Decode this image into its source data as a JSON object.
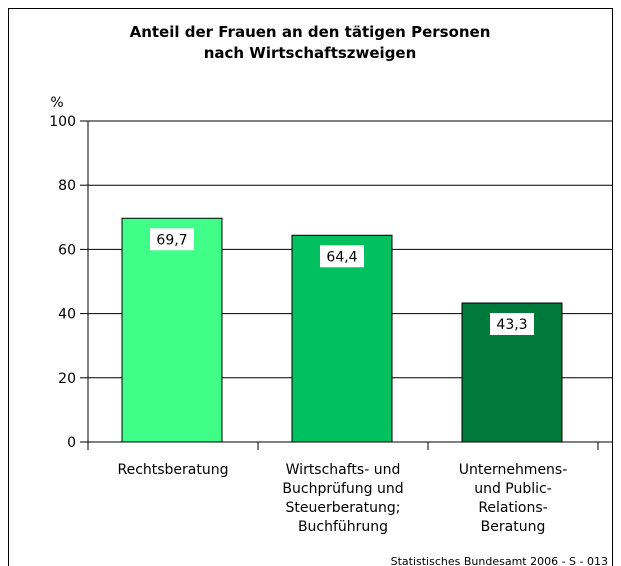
{
  "chart_data": {
    "type": "bar",
    "title": [
      "Anteil der Frauen an den tätigen Personen",
      "nach Wirtschaftszweigen"
    ],
    "y_label": "%",
    "categories": [
      [
        "Rechtsberatung"
      ],
      [
        "Wirtschafts- und",
        "Buchprüfung und",
        "Steuerberatung;",
        "Buchführung"
      ],
      [
        "Unternehmens-",
        "und Public-",
        "Relations-",
        "Beratung"
      ]
    ],
    "values": [
      69.7,
      64.4,
      43.3
    ],
    "value_labels": [
      "69,7",
      "64,4",
      "43,3"
    ],
    "colors": [
      "#40ff88",
      "#00c060",
      "#007a3a"
    ],
    "ylim": [
      0,
      100
    ],
    "yticks": [
      0,
      20,
      40,
      60,
      80,
      100
    ],
    "grid": true,
    "source": "Statistisches Bundesamt 2006 - S - 013"
  }
}
